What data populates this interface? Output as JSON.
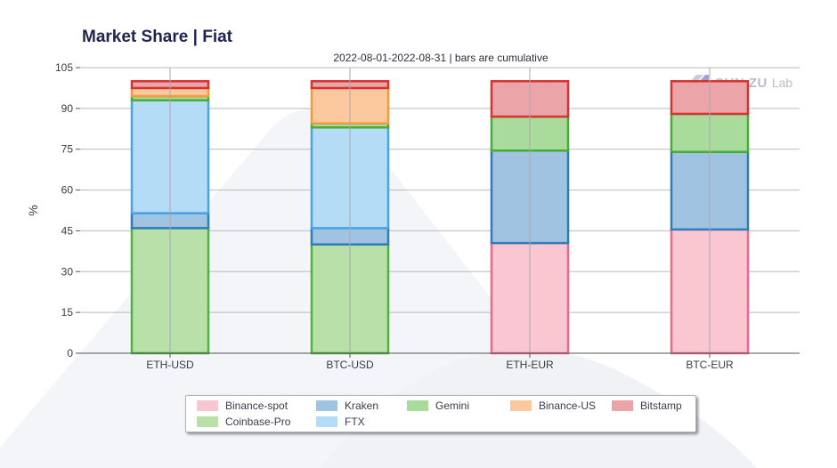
{
  "header": {
    "title": "Market Share | Fiat",
    "subtitle": "2022-08-01-2022-08-31 | bars are cumulative"
  },
  "logo": {
    "text": "SUN ZU",
    "suffix": "Lab"
  },
  "colors": {
    "Binance-spot": {
      "fill": "#f9c6d1",
      "stroke": "#ee6a86"
    },
    "Coinbase-Pro": {
      "fill": "#b8e0a8",
      "stroke": "#4eb43d"
    },
    "Kraken": {
      "fill": "#9fc3e0",
      "stroke": "#2f7cba"
    },
    "FTX": {
      "fill": "#b4dcf6",
      "stroke": "#48a4e8"
    },
    "Gemini": {
      "fill": "#a9dc9c",
      "stroke": "#45ad36"
    },
    "Binance-US": {
      "fill": "#fcc89d",
      "stroke": "#f59a3c"
    },
    "Bitstamp": {
      "fill": "#eba5a8",
      "stroke": "#d63232"
    }
  },
  "chart_data": {
    "type": "bar",
    "stacked": true,
    "title": "Market Share | Fiat",
    "subtitle": "2022-08-01-2022-08-31 | bars are cumulative",
    "xlabel": "",
    "ylabel": "%",
    "ylim": [
      0,
      105
    ],
    "yticks": [
      "0",
      "15",
      "30",
      "45",
      "60",
      "75",
      "90",
      "105"
    ],
    "ytick_values": [
      0,
      15,
      30,
      45,
      60,
      75,
      90,
      105
    ],
    "categories": [
      "ETH-USD",
      "BTC-USD",
      "ETH-EUR",
      "BTC-EUR"
    ],
    "grid": true,
    "legend_position": "bottom",
    "series": [
      {
        "name": "Binance-spot",
        "values": [
          0,
          0,
          40.5,
          45.5
        ]
      },
      {
        "name": "Coinbase-Pro",
        "values": [
          46,
          40,
          0,
          0
        ]
      },
      {
        "name": "Kraken",
        "values": [
          5.5,
          6,
          34,
          28.5
        ]
      },
      {
        "name": "FTX",
        "values": [
          41.5,
          37,
          0,
          0
        ]
      },
      {
        "name": "Gemini",
        "values": [
          1.5,
          1.5,
          12.5,
          14
        ]
      },
      {
        "name": "Binance-US",
        "values": [
          3,
          13,
          0,
          0
        ]
      },
      {
        "name": "Bitstamp",
        "values": [
          2.5,
          2.5,
          13,
          12
        ]
      }
    ]
  },
  "legend": {
    "items": [
      "Binance-spot",
      "Kraken",
      "Gemini",
      "Binance-US",
      "Bitstamp",
      "Coinbase-Pro",
      "FTX"
    ]
  }
}
